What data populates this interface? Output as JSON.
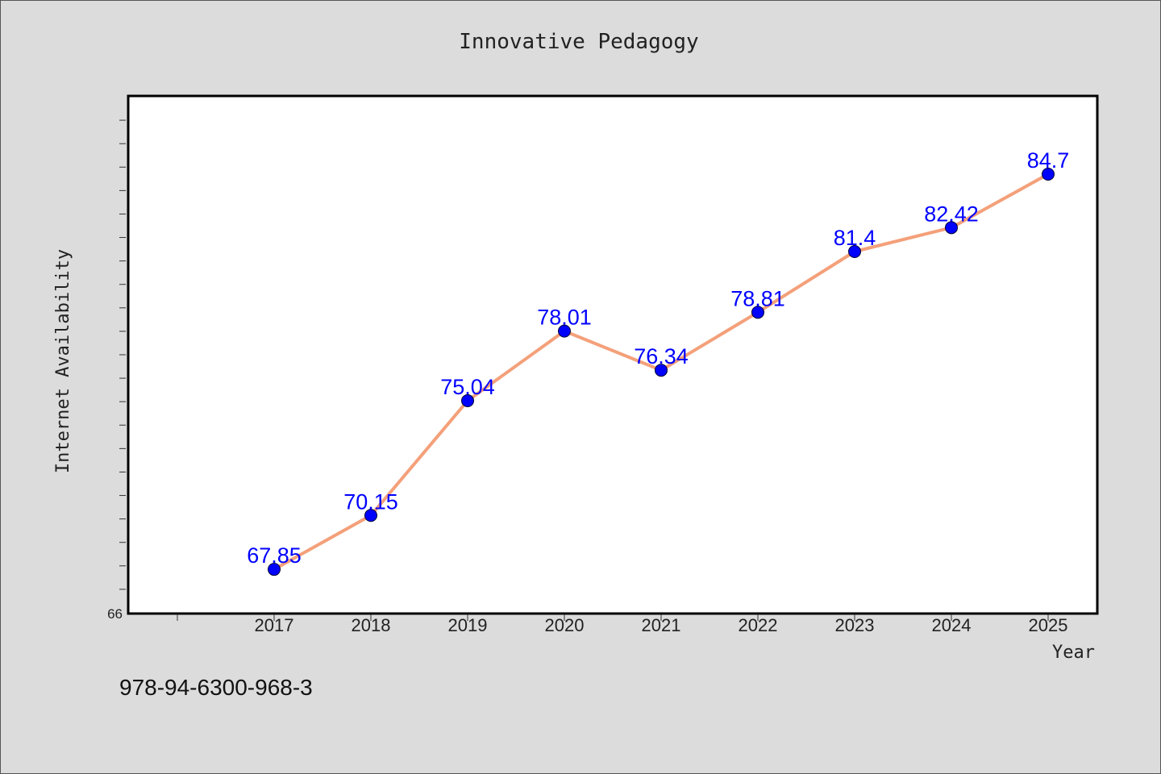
{
  "chart_data": {
    "type": "line",
    "title": "Innovative Pedagogy",
    "xlabel": "Year",
    "ylabel": "Internet Availability",
    "categories": [
      "2017",
      "2018",
      "2019",
      "2020",
      "2021",
      "2022",
      "2023",
      "2024",
      "2025"
    ],
    "series": [
      {
        "values": [
          67.85,
          70.15,
          75.04,
          78.01,
          76.34,
          78.81,
          81.4,
          82.42,
          84.7
        ],
        "data_labels": [
          "67.85",
          "70.15",
          "75.04",
          "78.01",
          "76.34",
          "78.81",
          "81.4",
          "82.42",
          "84.7"
        ],
        "line_color": "#f4a07a",
        "marker_color": "#0000ff"
      }
    ],
    "ylim": [
      66,
      88
    ],
    "y_tick_labels": [
      "66"
    ],
    "grid": false,
    "legend": "none"
  },
  "footer": {
    "isbn": "978-94-6300-968-3"
  },
  "colors": {
    "background": "#dcdcdc",
    "plot_background": "#ffffff",
    "line": "#f4a07a",
    "marker": "#0000ff",
    "data_label": "#0000ff"
  }
}
